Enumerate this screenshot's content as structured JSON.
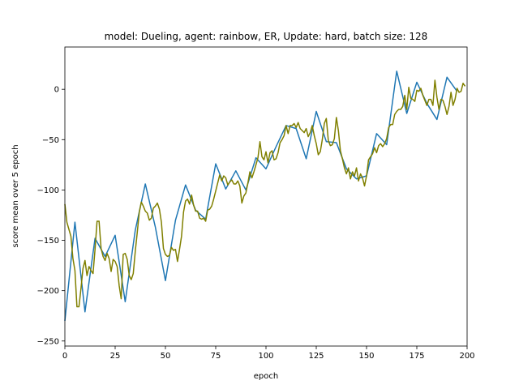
{
  "chart_data": {
    "type": "line",
    "title": "model: Dueling, agent: rainbow, ER, Update: hard,  batch size: 128",
    "xlabel": "epoch",
    "ylabel": "score mean over 5 epoch",
    "xlim": [
      0,
      200
    ],
    "ylim": [
      -255,
      42
    ],
    "xticks": [
      0,
      25,
      50,
      75,
      100,
      125,
      150,
      175,
      200
    ],
    "yticks": [
      -250,
      -200,
      -150,
      -100,
      -50,
      0
    ],
    "grid": false,
    "series": [
      {
        "color": "#1f77b4",
        "x": [
          0,
          5,
          10,
          15,
          20,
          25,
          30,
          35,
          40,
          45,
          50,
          55,
          60,
          65,
          70,
          75,
          80,
          85,
          90,
          95,
          100,
          105,
          110,
          115,
          120,
          125,
          130,
          135,
          140,
          145,
          150,
          155,
          160,
          165,
          170,
          175,
          180,
          185,
          190,
          195
        ],
        "y": [
          -230,
          -132,
          -221,
          -148,
          -166,
          -145,
          -211,
          -140,
          -94,
          -137,
          -190,
          -130,
          -95,
          -120,
          -129,
          -74,
          -99,
          -81,
          -100,
          -68,
          -79,
          -57,
          -36,
          -39,
          -69,
          -22,
          -52,
          -53,
          -79,
          -89,
          -86,
          -44,
          -55,
          18,
          -24,
          7,
          -14,
          -30,
          12,
          -2
        ]
      },
      {
        "color": "#808000",
        "x": [
          0,
          1,
          2,
          3,
          4,
          5,
          6,
          7,
          8,
          9,
          10,
          11,
          12,
          13,
          14,
          15,
          16,
          17,
          18,
          19,
          20,
          21,
          22,
          23,
          24,
          25,
          26,
          27,
          28,
          29,
          30,
          31,
          32,
          33,
          34,
          35,
          36,
          37,
          38,
          39,
          40,
          41,
          42,
          43,
          44,
          45,
          46,
          47,
          48,
          49,
          50,
          51,
          52,
          53,
          54,
          55,
          56,
          57,
          58,
          59,
          60,
          61,
          62,
          63,
          64,
          65,
          66,
          67,
          68,
          69,
          70,
          71,
          72,
          73,
          74,
          75,
          76,
          77,
          78,
          79,
          80,
          81,
          82,
          83,
          84,
          85,
          86,
          87,
          88,
          89,
          90,
          91,
          92,
          93,
          94,
          95,
          96,
          97,
          98,
          99,
          100,
          101,
          102,
          103,
          104,
          105,
          106,
          107,
          108,
          109,
          110,
          111,
          112,
          113,
          114,
          115,
          116,
          117,
          118,
          119,
          120,
          121,
          122,
          123,
          124,
          125,
          126,
          127,
          128,
          129,
          130,
          131,
          132,
          133,
          134,
          135,
          136,
          137,
          138,
          139,
          140,
          141,
          142,
          143,
          144,
          145,
          146,
          147,
          148,
          149,
          150,
          151,
          152,
          153,
          154,
          155,
          156,
          157,
          158,
          159,
          160,
          161,
          162,
          163,
          164,
          165,
          166,
          167,
          168,
          169,
          170,
          171,
          172,
          173,
          174,
          175,
          176,
          177,
          178,
          179,
          180,
          181,
          182,
          183,
          184,
          185,
          186,
          187,
          188,
          189,
          190,
          191,
          192,
          193,
          194,
          195,
          196,
          197,
          198,
          199
        ],
        "y": [
          -114,
          -132,
          -139,
          -146,
          -168,
          -180,
          -216,
          -216,
          -198,
          -178,
          -170,
          -185,
          -176,
          -180,
          -183,
          -159,
          -131,
          -131,
          -158,
          -166,
          -170,
          -163,
          -168,
          -181,
          -169,
          -171,
          -176,
          -195,
          -208,
          -164,
          -163,
          -169,
          -185,
          -189,
          -183,
          -161,
          -142,
          -122,
          -112,
          -116,
          -121,
          -123,
          -130,
          -128,
          -118,
          -116,
          -113,
          -119,
          -132,
          -158,
          -164,
          -166,
          -165,
          -157,
          -160,
          -159,
          -171,
          -159,
          -146,
          -122,
          -111,
          -109,
          -114,
          -105,
          -115,
          -121,
          -121,
          -128,
          -129,
          -128,
          -131,
          -120,
          -119,
          -116,
          -109,
          -101,
          -93,
          -85,
          -91,
          -86,
          -88,
          -95,
          -92,
          -90,
          -94,
          -94,
          -91,
          -96,
          -113,
          -106,
          -103,
          -93,
          -82,
          -88,
          -82,
          -75,
          -68,
          -52,
          -67,
          -70,
          -62,
          -73,
          -63,
          -61,
          -70,
          -69,
          -63,
          -53,
          -50,
          -46,
          -36,
          -44,
          -36,
          -36,
          -34,
          -38,
          -33,
          -39,
          -41,
          -43,
          -39,
          -47,
          -43,
          -36,
          -46,
          -54,
          -65,
          -62,
          -50,
          -34,
          -29,
          -51,
          -56,
          -55,
          -49,
          -28,
          -41,
          -61,
          -69,
          -78,
          -84,
          -78,
          -89,
          -82,
          -86,
          -78,
          -91,
          -84,
          -88,
          -96,
          -86,
          -70,
          -67,
          -64,
          -58,
          -63,
          -56,
          -54,
          -57,
          -54,
          -49,
          -38,
          -35,
          -35,
          -25,
          -22,
          -20,
          -20,
          -17,
          -6,
          -20,
          2,
          -9,
          -10,
          -12,
          -1,
          -2,
          1,
          -6,
          -11,
          -16,
          -10,
          -10,
          -16,
          9,
          -8,
          -20,
          -10,
          -11,
          -17,
          -25,
          -17,
          -3,
          -16,
          -10,
          1,
          -3,
          -2,
          6,
          3
        ]
      }
    ]
  }
}
